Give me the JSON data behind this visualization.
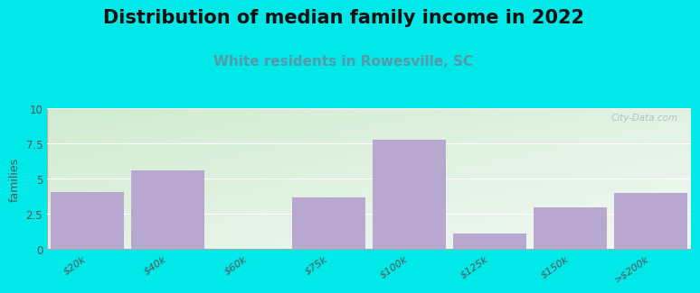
{
  "title": "Distribution of median family income in 2022",
  "subtitle": "White residents in Rowesville, SC",
  "categories": [
    "$20k",
    "$40k",
    "$60k",
    "$75k",
    "$100k",
    "$125k",
    "$150k",
    ">$200k"
  ],
  "values": [
    4.1,
    5.6,
    0,
    3.7,
    7.8,
    1.1,
    3.0,
    4.0
  ],
  "bar_color": "#b8a8d0",
  "background_outer": "#00e8e8",
  "grad_top_left": "#d0ecd0",
  "grad_right": "#eef4f4",
  "ylabel": "families",
  "ylim": [
    0,
    10
  ],
  "yticks": [
    0,
    2.5,
    5,
    7.5,
    10
  ],
  "title_fontsize": 15,
  "subtitle_fontsize": 11,
  "subtitle_color": "#5599aa",
  "watermark": "City-Data.com",
  "tick_label_color": "#555555"
}
